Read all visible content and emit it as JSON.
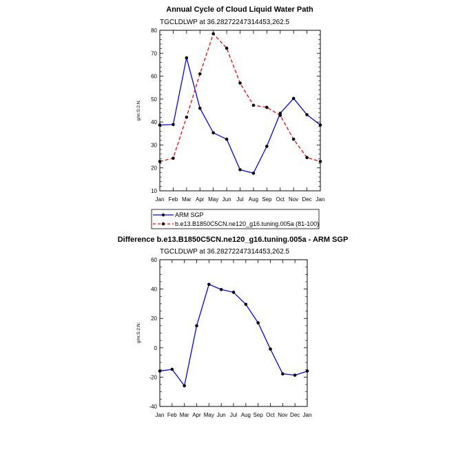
{
  "chart_data": [
    {
      "type": "line",
      "title": "Annual Cycle of Cloud Liquid Water Path",
      "subtitle": "TGCLDLWP at 36.282722473144​53,262.5",
      "xlabel": "",
      "ylabel": "g/m:S:2:N:",
      "categories": [
        "Jan",
        "Feb",
        "Mar",
        "Apr",
        "May",
        "Jun",
        "Jul",
        "Aug",
        "Sep",
        "Oct",
        "Nov",
        "Dec",
        "Jan"
      ],
      "ylim": [
        10,
        80
      ],
      "yticks": [
        "10",
        "20",
        "30",
        "40",
        "50",
        "60",
        "70",
        "80"
      ],
      "grid": false,
      "legend_position": "bottom",
      "series": [
        {
          "name": "ARM SGP",
          "color": "#0000ff",
          "dash": false,
          "values": [
            38.7,
            38.9,
            68.0,
            46.0,
            35.3,
            32.5,
            19.2,
            17.7,
            29.4,
            43.8,
            50.3,
            43.2,
            38.7
          ]
        },
        {
          "name": "b.e13.B1850C5CN.ne120_g16.tuning.005a (81-100)",
          "color": "#ff0000",
          "dash": true,
          "values": [
            22.8,
            24.2,
            42.1,
            61.0,
            78.5,
            72.2,
            57.0,
            47.3,
            46.4,
            42.9,
            32.5,
            24.5,
            22.8
          ]
        }
      ]
    },
    {
      "type": "line",
      "title": "Difference b.e13.B1850C5CN.ne120_g16.tuning.005a - ARM SGP",
      "subtitle": "TGCLDLWP at 36.282722473144​53,262.5",
      "xlabel": "",
      "ylabel": "g/m:S:2:N:",
      "categories": [
        "Jan",
        "Feb",
        "Mar",
        "Apr",
        "May",
        "Jun",
        "Jul",
        "Aug",
        "Sep",
        "Oct",
        "Nov",
        "Dec",
        "Jan"
      ],
      "ylim": [
        -40,
        60
      ],
      "yticks": [
        "-40",
        "-20",
        "0",
        "20",
        "40",
        "60"
      ],
      "grid": false,
      "series": [
        {
          "name": "",
          "color": "#0000ff",
          "dash": false,
          "values": [
            -15.9,
            -14.7,
            -25.9,
            15.0,
            43.2,
            39.7,
            37.8,
            29.6,
            17.0,
            -0.9,
            -17.8,
            -18.7,
            -15.9
          ]
        }
      ]
    }
  ]
}
